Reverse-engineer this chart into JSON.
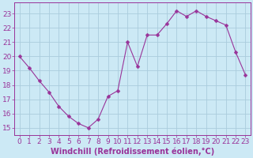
{
  "x": [
    0,
    1,
    2,
    3,
    4,
    5,
    6,
    7,
    8,
    9,
    10,
    11,
    12,
    13,
    14,
    15,
    16,
    17,
    18,
    19,
    20,
    21,
    22,
    23
  ],
  "y": [
    20.0,
    19.2,
    18.3,
    17.5,
    16.5,
    15.8,
    15.3,
    15.0,
    15.6,
    17.2,
    17.6,
    21.0,
    19.3,
    21.5,
    21.5,
    22.3,
    23.2,
    22.8,
    23.2,
    22.8,
    22.5,
    22.2,
    20.3,
    18.7
  ],
  "line_color": "#993399",
  "marker_color": "#993399",
  "bg_color": "#cce9f5",
  "grid_color": "#aaccdd",
  "xlabel": "Windchill (Refroidissement éolien,°C)",
  "xlabel_color": "#993399",
  "tick_color": "#993399",
  "ylim": [
    14.5,
    23.8
  ],
  "xlim": [
    -0.5,
    23.5
  ],
  "yticks": [
    15,
    16,
    17,
    18,
    19,
    20,
    21,
    22,
    23
  ],
  "xtick_labels": [
    "0",
    "1",
    "2",
    "3",
    "4",
    "5",
    "6",
    "7",
    "8",
    "9",
    "10",
    "11",
    "12",
    "13",
    "14",
    "15",
    "16",
    "17",
    "18",
    "19",
    "20",
    "21",
    "22",
    "23"
  ],
  "font_size": 6.5,
  "marker_size": 2.5,
  "line_width": 0.8
}
